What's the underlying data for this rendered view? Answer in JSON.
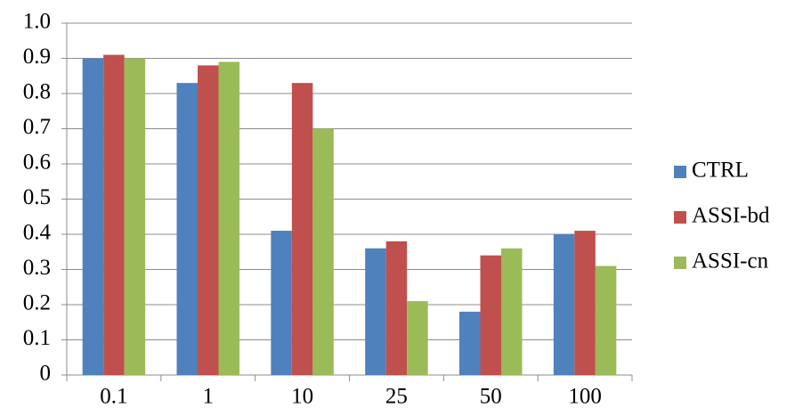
{
  "chart_data": {
    "type": "bar",
    "categories": [
      "0.1",
      "1",
      "10",
      "25",
      "50",
      "100"
    ],
    "series": [
      {
        "name": "CTRL",
        "color": "#4f81bd",
        "values": [
          0.9,
          0.83,
          0.41,
          0.36,
          0.18,
          0.4
        ]
      },
      {
        "name": "ASSI-bd",
        "color": "#c0504d",
        "values": [
          0.91,
          0.88,
          0.83,
          0.38,
          0.34,
          0.41
        ]
      },
      {
        "name": "ASSI-cn",
        "color": "#9bbb59",
        "values": [
          0.9,
          0.89,
          0.7,
          0.21,
          0.36,
          0.31
        ]
      }
    ],
    "ylim": [
      0,
      1
    ],
    "yticks": [
      0,
      0.1,
      0.2,
      0.3,
      0.4,
      0.5,
      0.6,
      0.7,
      0.8,
      0.9,
      {
        "value": 1,
        "label": "1.0"
      }
    ],
    "grid": true,
    "legend": "right"
  }
}
